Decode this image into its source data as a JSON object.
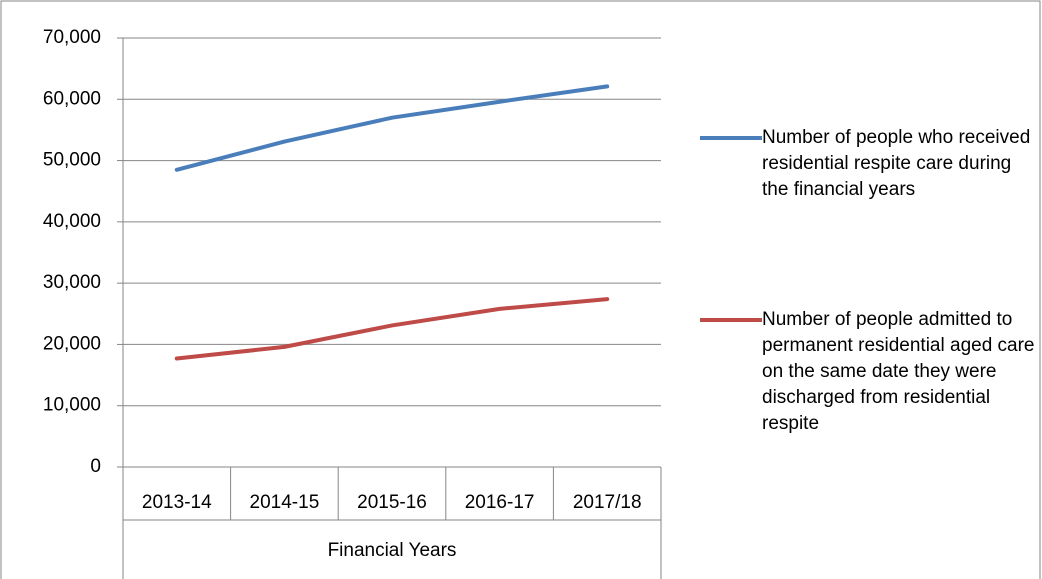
{
  "chart_data": {
    "type": "line",
    "axis_title": "Financial Years",
    "categories": [
      "2013-14",
      "2014-15",
      "2015-16",
      "2016-17",
      "2017/18"
    ],
    "series": [
      {
        "name": "Number of people who received residential respite care during the financial years",
        "color": "#4a7ebb",
        "values": [
          48500,
          53100,
          57000,
          59600,
          62100
        ]
      },
      {
        "name": "Number of people admitted to permanent residential aged care on the same date they were discharged from residential respite",
        "color": "#be4b48",
        "values": [
          17700,
          19600,
          23100,
          25800,
          27400
        ]
      }
    ],
    "ylim": [
      0,
      70000
    ],
    "yticks": [
      0,
      {
        "value": 10000,
        "label": "10,000"
      },
      {
        "value": 20000,
        "label": "20,000"
      },
      {
        "value": 30000,
        "label": "30,000"
      },
      {
        "value": 40000,
        "label": "40,000"
      },
      {
        "value": 50000,
        "label": "50,000"
      },
      {
        "value": 60000,
        "label": "60,000"
      },
      {
        "value": 70000,
        "label": "70,000"
      }
    ],
    "grid": true,
    "legend": "right"
  }
}
